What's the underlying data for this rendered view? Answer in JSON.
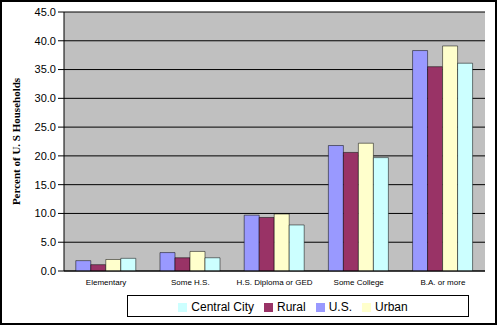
{
  "chart_data": {
    "type": "bar",
    "y_label": "Percent of U. S Households",
    "categories": [
      "Elementary",
      "Some H.S.",
      "H.S. Diploma or GED",
      "Some College",
      "B.A. or more"
    ],
    "series": [
      {
        "name": "U.S.",
        "color": "#9999ff",
        "values": [
          1.8,
          3.2,
          9.7,
          21.8,
          38.3
        ]
      },
      {
        "name": "Rural",
        "color": "#993366",
        "values": [
          1.1,
          2.3,
          9.3,
          20.6,
          35.5
        ]
      },
      {
        "name": "Urban",
        "color": "#ffffcc",
        "values": [
          2.0,
          3.4,
          9.9,
          22.2,
          39.1
        ]
      },
      {
        "name": "Central City",
        "color": "#ccffff",
        "values": [
          2.2,
          2.3,
          8.0,
          19.7,
          36.1
        ]
      }
    ],
    "ylim": [
      0,
      45
    ],
    "yticks": [
      {
        "value": 0,
        "label": "0.0"
      },
      {
        "value": 5,
        "label": "5.0"
      },
      {
        "value": 10,
        "label": "10.0"
      },
      {
        "value": 15,
        "label": "15.0"
      },
      {
        "value": 20,
        "label": "20.0"
      },
      {
        "value": 25,
        "label": "25.0"
      },
      {
        "value": 30,
        "label": "30.0"
      },
      {
        "value": 35,
        "label": "35.0"
      },
      {
        "value": 40,
        "label": "40.0"
      },
      {
        "value": 45,
        "label": "45.0"
      }
    ],
    "grid": true,
    "legend": "bottom"
  }
}
